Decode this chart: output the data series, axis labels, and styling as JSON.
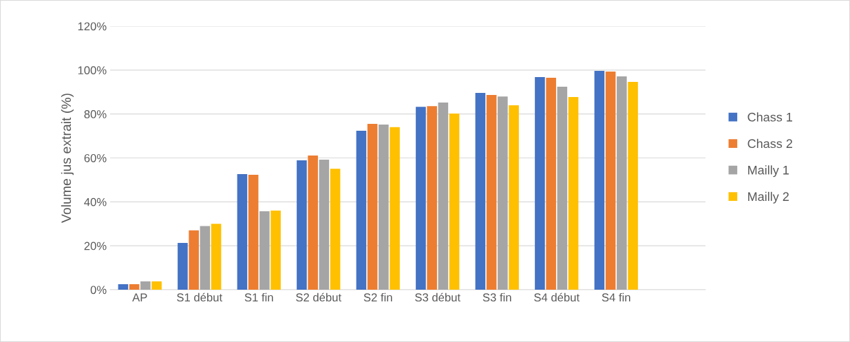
{
  "chart_data": {
    "type": "bar",
    "ylabel": "Volume jus extrait (%)",
    "categories": [
      "AP",
      "S1 début",
      "S1 fin",
      "S2 début",
      "S2 fin",
      "S3 début",
      "S3 fin",
      "S4 début",
      "S4 fin",
      null
    ],
    "series": [
      {
        "name": "Chass 1",
        "color": "#4472c4",
        "values": [
          2.5,
          21.3,
          52.6,
          58.9,
          72.4,
          83.3,
          89.6,
          96.8,
          99.6,
          null
        ]
      },
      {
        "name": "Chass 2",
        "color": "#ed7d31",
        "values": [
          2.5,
          27,
          52.3,
          61.1,
          75.5,
          83.6,
          88.7,
          96.5,
          99.3,
          null
        ]
      },
      {
        "name": "Mailly 1",
        "color": "#a5a5a5",
        "values": [
          3.8,
          29,
          35.7,
          59.2,
          75.2,
          85.2,
          88,
          92.4,
          97.1,
          null
        ]
      },
      {
        "name": "Mailly 2",
        "color": "#ffc000",
        "values": [
          3.8,
          30,
          36,
          55.1,
          74,
          80.2,
          84,
          87.7,
          94.6,
          null
        ]
      }
    ],
    "ylim": [
      0,
      120
    ],
    "yticks": [
      {
        "value": 0,
        "label": "0%"
      },
      {
        "value": 20,
        "label": "20%"
      },
      {
        "value": 40,
        "label": "40%"
      },
      {
        "value": 60,
        "label": "60%"
      },
      {
        "value": 80,
        "label": "80%"
      },
      {
        "value": 100,
        "label": "100%"
      },
      {
        "value": 120,
        "label": "120%"
      }
    ],
    "grid": "y",
    "legend": "right"
  }
}
